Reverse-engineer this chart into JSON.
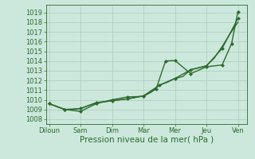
{
  "bg_color": "#cce8dc",
  "grid_color": "#aaccbc",
  "line_color": "#2d6a2d",
  "marker_color": "#2d6a2d",
  "xlabel": "Pression niveau de la mer( hPa )",
  "xlabel_fontsize": 7.5,
  "tick_fontsize": 6,
  "ylim": [
    1007.5,
    1019.8
  ],
  "yticks": [
    1008,
    1009,
    1010,
    1011,
    1012,
    1013,
    1014,
    1015,
    1016,
    1017,
    1018,
    1019
  ],
  "x_labels": [
    "Diloun",
    "Sam",
    "Dim",
    "Mar",
    "Mer",
    "Jeu",
    "Ven"
  ],
  "x_positions": [
    0,
    1,
    2,
    3,
    4,
    5,
    6
  ],
  "xlim": [
    -0.1,
    6.3
  ],
  "series": [
    {
      "x": [
        0,
        0.25,
        0.5,
        0.75,
        1.0,
        1.25,
        1.5,
        1.75,
        2.0,
        2.25,
        2.5,
        2.75,
        3.0,
        3.25,
        3.5,
        3.75,
        4.0,
        4.25,
        4.5,
        4.75,
        5.0,
        5.25,
        5.5,
        5.75,
        6.0
      ],
      "y": [
        1009.6,
        1009.3,
        1009.0,
        1009.0,
        1009.1,
        1009.4,
        1009.7,
        1009.8,
        1009.9,
        1010.0,
        1010.1,
        1010.25,
        1010.4,
        1010.8,
        1011.5,
        1011.8,
        1012.2,
        1012.4,
        1013.1,
        1013.3,
        1013.5,
        1014.3,
        1015.5,
        1016.8,
        1018.0
      ],
      "marker": false,
      "linewidth": 1.0
    },
    {
      "x": [
        0,
        0.5,
        1.0,
        1.5,
        2.0,
        2.5,
        3.0,
        3.5,
        4.0,
        4.5,
        5.0,
        5.5,
        6.0
      ],
      "y": [
        1009.6,
        1009.0,
        1009.1,
        1009.7,
        1009.9,
        1010.1,
        1010.4,
        1011.5,
        1012.2,
        1013.1,
        1013.5,
        1015.3,
        1018.4
      ],
      "marker": true,
      "linewidth": 1.0
    },
    {
      "x": [
        0,
        0.5,
        1.0,
        1.5,
        2.0,
        2.5,
        3.0,
        3.4,
        3.7,
        4.0,
        4.5,
        5.0,
        5.5,
        5.8,
        6.0
      ],
      "y": [
        1009.6,
        1009.0,
        1008.8,
        1009.6,
        1010.0,
        1010.3,
        1010.35,
        1011.1,
        1014.0,
        1014.05,
        1012.7,
        1013.4,
        1013.6,
        1015.8,
        1019.1
      ],
      "marker": true,
      "linewidth": 1.0
    }
  ]
}
